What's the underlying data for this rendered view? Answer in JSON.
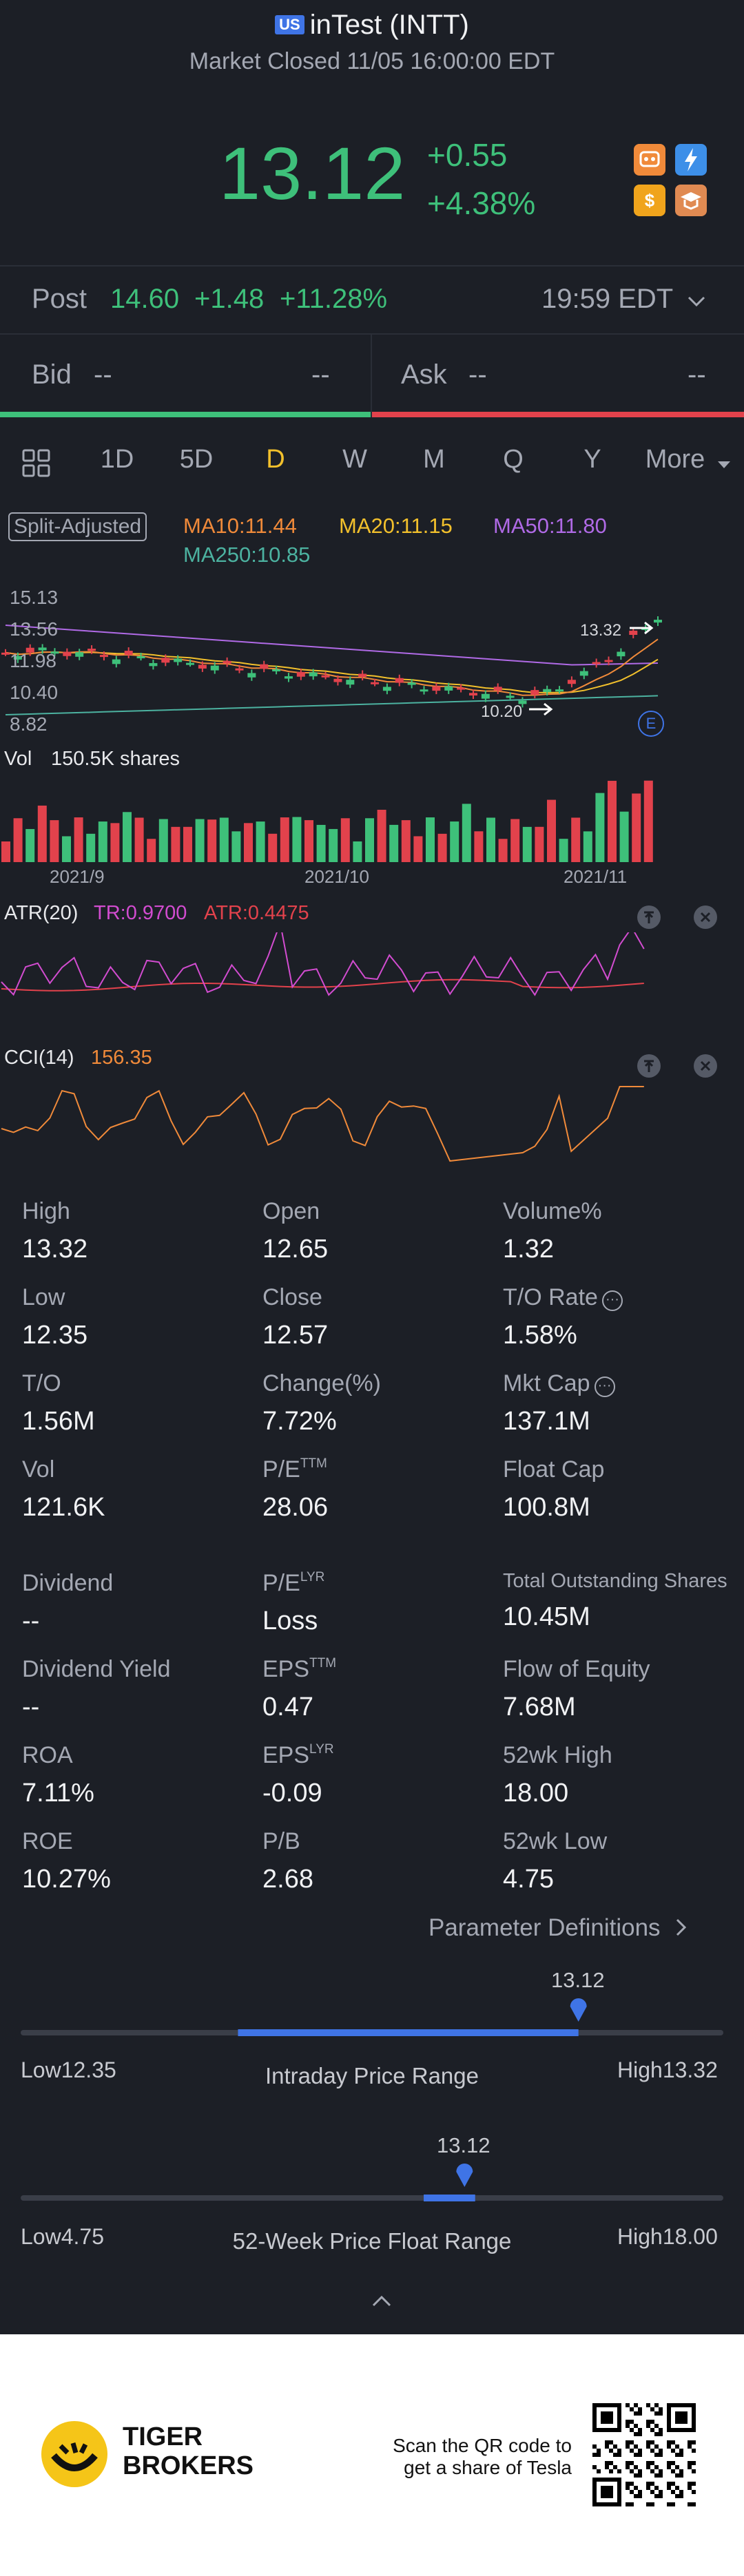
{
  "header": {
    "market_badge": "US",
    "title": "inTest (INTT)",
    "status": "Market Closed 11/05 16:00:00 EDT",
    "price": "13.12",
    "change": "+0.55",
    "change_pct": "+4.38%"
  },
  "post": {
    "label": "Post",
    "price": "14.60",
    "change": "+1.48",
    "change_pct": "+11.28%",
    "time": "19:59 EDT"
  },
  "bidask": {
    "bid_label": "Bid",
    "bid_value": "--",
    "bid_size": "--",
    "ask_label": "Ask",
    "ask_value": "--",
    "ask_size": "--"
  },
  "tabs": [
    "1D",
    "5D",
    "D",
    "W",
    "M",
    "Q",
    "Y",
    "More"
  ],
  "active_tab": "D",
  "ma": {
    "adjust_label": "Split-Adjusted",
    "ma10": "MA10:11.44",
    "ma20": "MA20:11.15",
    "ma50": "MA50:11.80",
    "ma250": "MA250:10.85"
  },
  "price_chart": {
    "y_ticks": [
      "15.13",
      "13.56",
      "11.98",
      "10.40",
      "8.82"
    ],
    "high_label": "13.32",
    "low_label": "10.20",
    "earnings_marker": "E"
  },
  "volume": {
    "label": "Vol",
    "value": "150.5K shares",
    "x_labels": [
      "2021/9",
      "2021/10",
      "2021/11"
    ]
  },
  "atr": {
    "label": "ATR(20)",
    "tr": "TR:0.9700",
    "atr": "ATR:0.4475"
  },
  "cci": {
    "label": "CCI(14)",
    "value": "156.35"
  },
  "stats": {
    "high": {
      "label": "High",
      "value": "13.32"
    },
    "open": {
      "label": "Open",
      "value": "12.65"
    },
    "volume_pct": {
      "label": "Volume%",
      "value": "1.32"
    },
    "low": {
      "label": "Low",
      "value": "12.35"
    },
    "close": {
      "label": "Close",
      "value": "12.57"
    },
    "to_rate": {
      "label": "T/O Rate",
      "value": "1.58%"
    },
    "to": {
      "label": "T/O",
      "value": "1.56M"
    },
    "change_pct": {
      "label": "Change(%)",
      "value": "7.72%"
    },
    "mkt_cap": {
      "label": "Mkt Cap",
      "value": "137.1M"
    },
    "vol": {
      "label": "Vol",
      "value": "121.6K"
    },
    "pe_ttm": {
      "label": "P/E",
      "sup": "TTM",
      "value": "28.06"
    },
    "float_cap": {
      "label": "Float Cap",
      "value": "100.8M"
    },
    "dividend": {
      "label": "Dividend",
      "value": "--"
    },
    "pe_lyr": {
      "label": "P/E",
      "sup": "LYR",
      "value": "Loss"
    },
    "total_shares": {
      "label": "Total Outstanding Shares",
      "value": "10.45M"
    },
    "div_yield": {
      "label": "Dividend Yield",
      "value": "--"
    },
    "eps_ttm": {
      "label": "EPS",
      "sup": "TTM",
      "value": "0.47"
    },
    "flow_equity": {
      "label": "Flow of Equity",
      "value": "7.68M"
    },
    "roa": {
      "label": "ROA",
      "value": "7.11%"
    },
    "eps_lyr": {
      "label": "EPS",
      "sup": "LYR",
      "value": "-0.09"
    },
    "wk52_high": {
      "label": "52wk High",
      "value": "18.00"
    },
    "roe": {
      "label": "ROE",
      "value": "10.27%"
    },
    "pb": {
      "label": "P/B",
      "value": "2.68"
    },
    "wk52_low": {
      "label": "52wk Low",
      "value": "4.75"
    }
  },
  "param_link": "Parameter Definitions",
  "intraday_range": {
    "title": "Intraday Price Range",
    "low_label": "Low12.35",
    "high_label": "High13.32",
    "current": "13.12",
    "low": 12.35,
    "high": 13.32,
    "open": 12.65,
    "price": 13.12
  },
  "week52_range": {
    "title": "52-Week Price Float Range",
    "low_label": "Low4.75",
    "high_label": "High18.00",
    "current": "13.12",
    "low": 4.75,
    "high": 18.0,
    "band_from": 12.35,
    "band_to": 13.32,
    "price": 13.12
  },
  "footer": {
    "brand_line1": "TIGER",
    "brand_line2": "BROKERS",
    "qr_line1": "Scan the QR code to",
    "qr_line2": "get a share of Tesla"
  },
  "colors": {
    "up": "#3ec07a",
    "down": "#e2424c",
    "ma10": "#f08a3a",
    "ma20": "#f2c02c",
    "ma50": "#b06ae6",
    "ma250": "#4cb2a0",
    "accent": "#3f74e6"
  }
}
